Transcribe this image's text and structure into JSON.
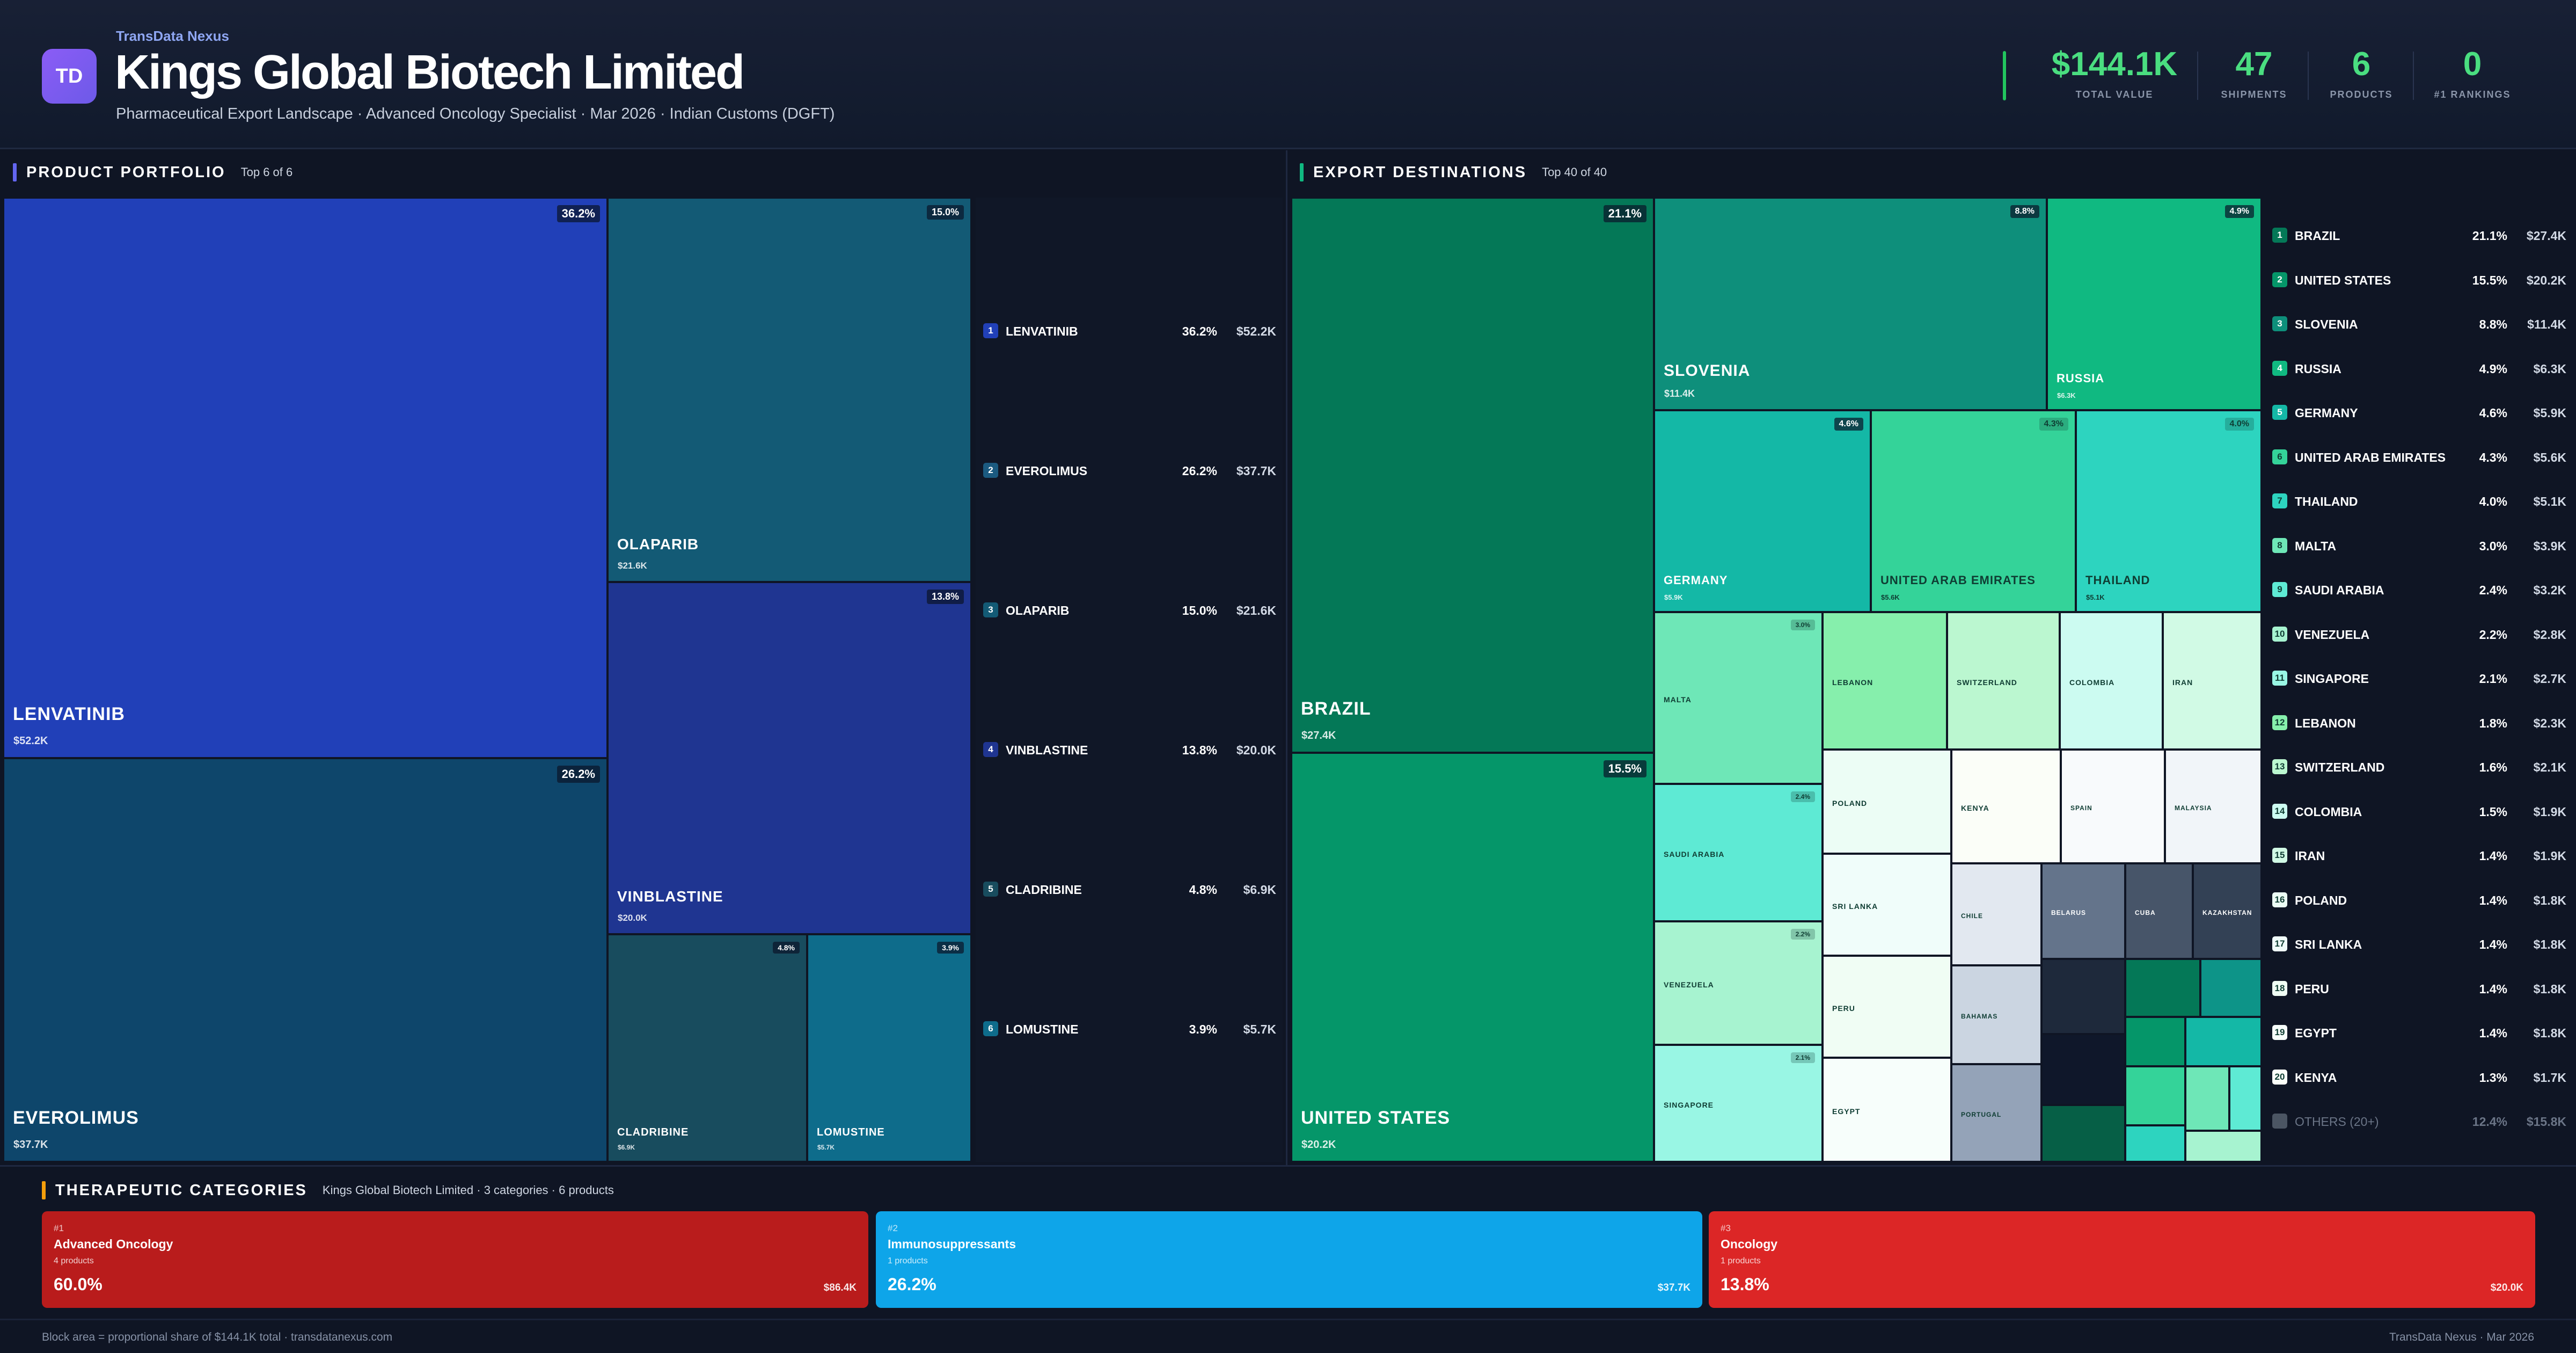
{
  "colors": {
    "accent_purple": "#8b5cf6",
    "kpi_green": "#4ade80",
    "portfolio_bar": "#6366f1",
    "dest_bar": "#10b981",
    "categories_bar": "#f59e0b"
  },
  "header": {
    "logo_text": "TD",
    "brand": "TransData Nexus",
    "title": "Kings Global Biotech Limited",
    "subtitle": "Pharmaceutical Export Landscape · Advanced Oncology Specialist · Mar 2026 · Indian Customs (DGFT)",
    "kpis": [
      {
        "value": "$144.1K",
        "label": "TOTAL VALUE"
      },
      {
        "value": "47",
        "label": "SHIPMENTS"
      },
      {
        "value": "6",
        "label": "PRODUCTS"
      },
      {
        "value": "0",
        "label": "#1 RANKINGS"
      }
    ]
  },
  "portfolio": {
    "title": "PRODUCT PORTFOLIO",
    "subtitle": "Top 6 of 6",
    "products": [
      {
        "rank": "1",
        "name": "LENVATINIB",
        "pct": "36.2%",
        "value": "$52.2K",
        "color": "#2140b8"
      },
      {
        "rank": "2",
        "name": "EVEROLIMUS",
        "pct": "26.2%",
        "value": "$37.7K",
        "color": "#0e466b"
      },
      {
        "rank": "3",
        "name": "OLAPARIB",
        "pct": "15.0%",
        "value": "$21.6K",
        "color": "#135a75"
      },
      {
        "rank": "4",
        "name": "VINBLASTINE",
        "pct": "13.8%",
        "value": "$20.0K",
        "color": "#1f3591"
      },
      {
        "rank": "5",
        "name": "CLADRIBINE",
        "pct": "4.8%",
        "value": "$6.9K",
        "color": "#184c5e"
      },
      {
        "rank": "6",
        "name": "LOMUSTINE",
        "pct": "3.9%",
        "value": "$5.7K",
        "color": "#0e6c8b"
      }
    ]
  },
  "destinations": {
    "title": "EXPORT DESTINATIONS",
    "subtitle": "Top 40 of 40",
    "countries": [
      {
        "rank": "1",
        "name": "BRAZIL",
        "pct": "21.1%",
        "value": "$27.4K",
        "color": "#047857"
      },
      {
        "rank": "2",
        "name": "UNITED STATES",
        "pct": "15.5%",
        "value": "$20.2K",
        "color": "#059669"
      },
      {
        "rank": "3",
        "name": "SLOVENIA",
        "pct": "8.8%",
        "value": "$11.4K",
        "color": "#0e8f7b"
      },
      {
        "rank": "4",
        "name": "RUSSIA",
        "pct": "4.9%",
        "value": "$6.3K",
        "color": "#10b981"
      },
      {
        "rank": "5",
        "name": "GERMANY",
        "pct": "4.6%",
        "value": "$5.9K",
        "color": "#14b8a6"
      },
      {
        "rank": "6",
        "name": "UNITED ARAB EMIRATES",
        "pct": "4.3%",
        "value": "$5.6K",
        "color": "#34d399"
      },
      {
        "rank": "7",
        "name": "THAILAND",
        "pct": "4.0%",
        "value": "$5.1K",
        "color": "#2dd4bf"
      },
      {
        "rank": "8",
        "name": "MALTA",
        "pct": "3.0%",
        "value": "$3.9K",
        "color": "#6ee7b7"
      },
      {
        "rank": "9",
        "name": "SAUDI ARABIA",
        "pct": "2.4%",
        "value": "$3.2K",
        "color": "#5eead4"
      },
      {
        "rank": "10",
        "name": "VENEZUELA",
        "pct": "2.2%",
        "value": "$2.8K",
        "color": "#a7f3d0"
      },
      {
        "rank": "11",
        "name": "SINGAPORE",
        "pct": "2.1%",
        "value": "$2.7K",
        "color": "#99f6e4"
      },
      {
        "rank": "12",
        "name": "LEBANON",
        "pct": "1.8%",
        "value": "$2.3K",
        "color": "#86efac"
      },
      {
        "rank": "13",
        "name": "SWITZERLAND",
        "pct": "1.6%",
        "value": "$2.1K",
        "color": "#bbf7d0"
      },
      {
        "rank": "14",
        "name": "COLOMBIA",
        "pct": "1.5%",
        "value": "$1.9K",
        "color": "#ccfbf1"
      },
      {
        "rank": "15",
        "name": "IRAN",
        "pct": "1.4%",
        "value": "$1.9K",
        "color": "#d1fae5"
      },
      {
        "rank": "16",
        "name": "POLAND",
        "pct": "1.4%",
        "value": "$1.8K",
        "color": "#ecfdf5"
      },
      {
        "rank": "17",
        "name": "SRI LANKA",
        "pct": "1.4%",
        "value": "$1.8K",
        "color": "#f0fdfa"
      },
      {
        "rank": "18",
        "name": "PERU",
        "pct": "1.4%",
        "value": "$1.8K",
        "color": "#f0fdf4"
      },
      {
        "rank": "19",
        "name": "EGYPT",
        "pct": "1.4%",
        "value": "$1.8K",
        "color": "#f7fefb"
      },
      {
        "rank": "20",
        "name": "KENYA",
        "pct": "1.3%",
        "value": "$1.7K",
        "color": "#fbfef8"
      }
    ],
    "others": {
      "name": "OTHERS (20+)",
      "pct": "12.4%",
      "value": "$15.8K",
      "color": "#4b5563"
    },
    "small_tiles": [
      "SPAIN",
      "MALAYSIA",
      "CHILE",
      "BELARUS",
      "CUBA",
      "KAZAKHSTAN",
      "BAHAMAS",
      "PORTUGAL"
    ]
  },
  "categories": {
    "title": "THERAPEUTIC CATEGORIES",
    "subtitle": "Kings Global Biotech Limited · 3 categories · 6 products",
    "items": [
      {
        "rank": "#1",
        "name": "Advanced Oncology",
        "count": "4 products",
        "pct": "60.0%",
        "value": "$86.4K",
        "color": "#b91c1c"
      },
      {
        "rank": "#2",
        "name": "Immunosuppressants",
        "count": "1 products",
        "pct": "26.2%",
        "value": "$37.7K",
        "color": "#0ea5e9"
      },
      {
        "rank": "#3",
        "name": "Oncology",
        "count": "1 products",
        "pct": "13.8%",
        "value": "$20.0K",
        "color": "#dc2626"
      }
    ]
  },
  "footer": {
    "left": "Block area = proportional share of $144.1K total · transdatanexus.com",
    "right": "TransData Nexus · Mar 2026"
  }
}
